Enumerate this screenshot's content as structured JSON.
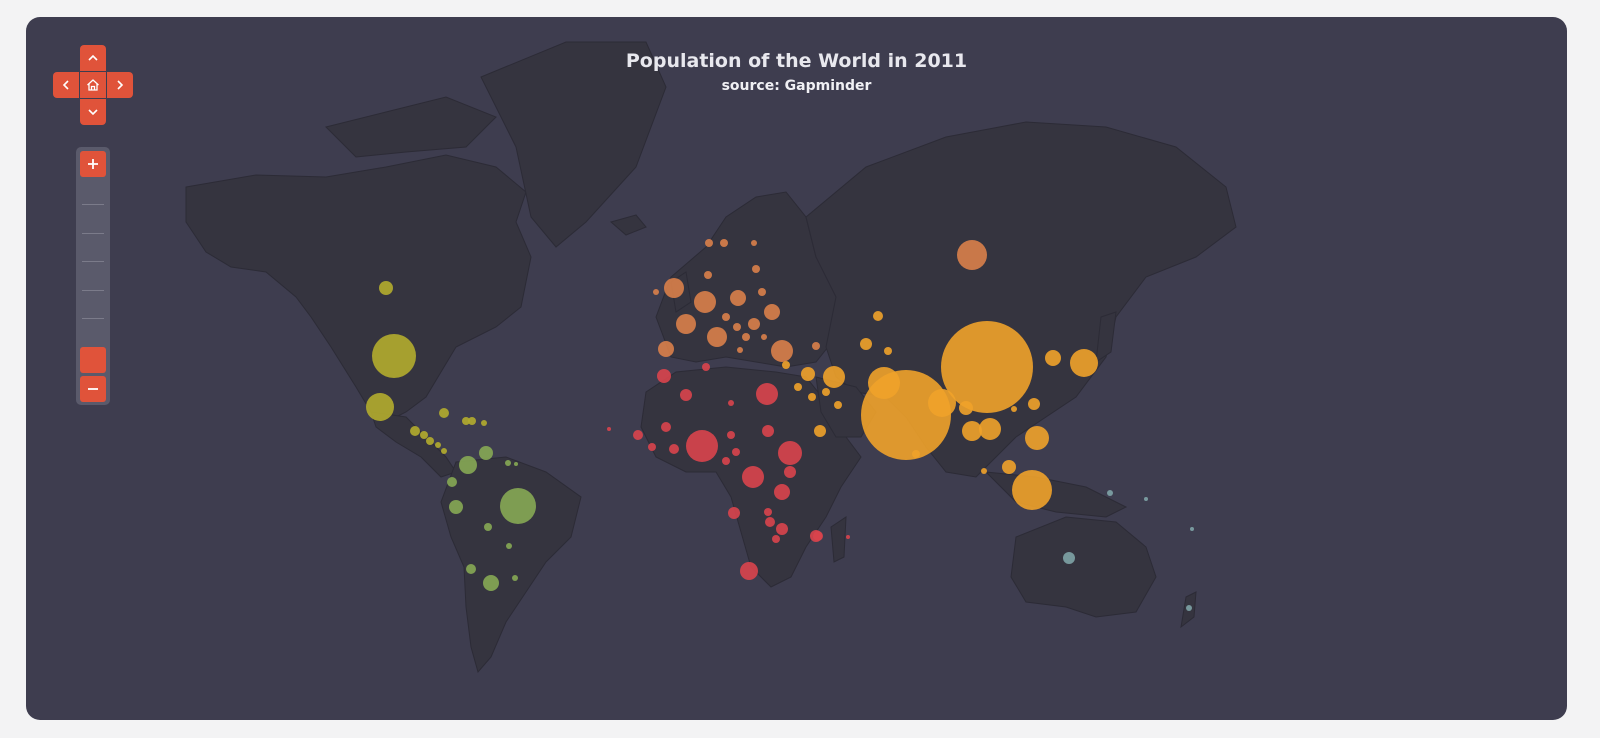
{
  "map": {
    "title": "Population of the World in 2011",
    "subtitle": "source: Gapminder",
    "background": "#3e3d4f",
    "land_color": "#35343f",
    "region_colors": {
      "north_america": "#b3ac2e",
      "south_america": "#86a854",
      "europe": "#d9804a",
      "africa": "#d9444d",
      "asia": "#f0a22a",
      "oceania": "#7ea3a6"
    }
  },
  "controls": {
    "pan_icons": [
      "chevron-up-icon",
      "chevron-left-icon",
      "home-icon",
      "chevron-right-icon",
      "chevron-down-icon"
    ],
    "zoom_in_glyph": "+",
    "zoom_out_glyph": "−",
    "zoom_level_fraction": 0.85,
    "accent": "#e0533a"
  }
}
